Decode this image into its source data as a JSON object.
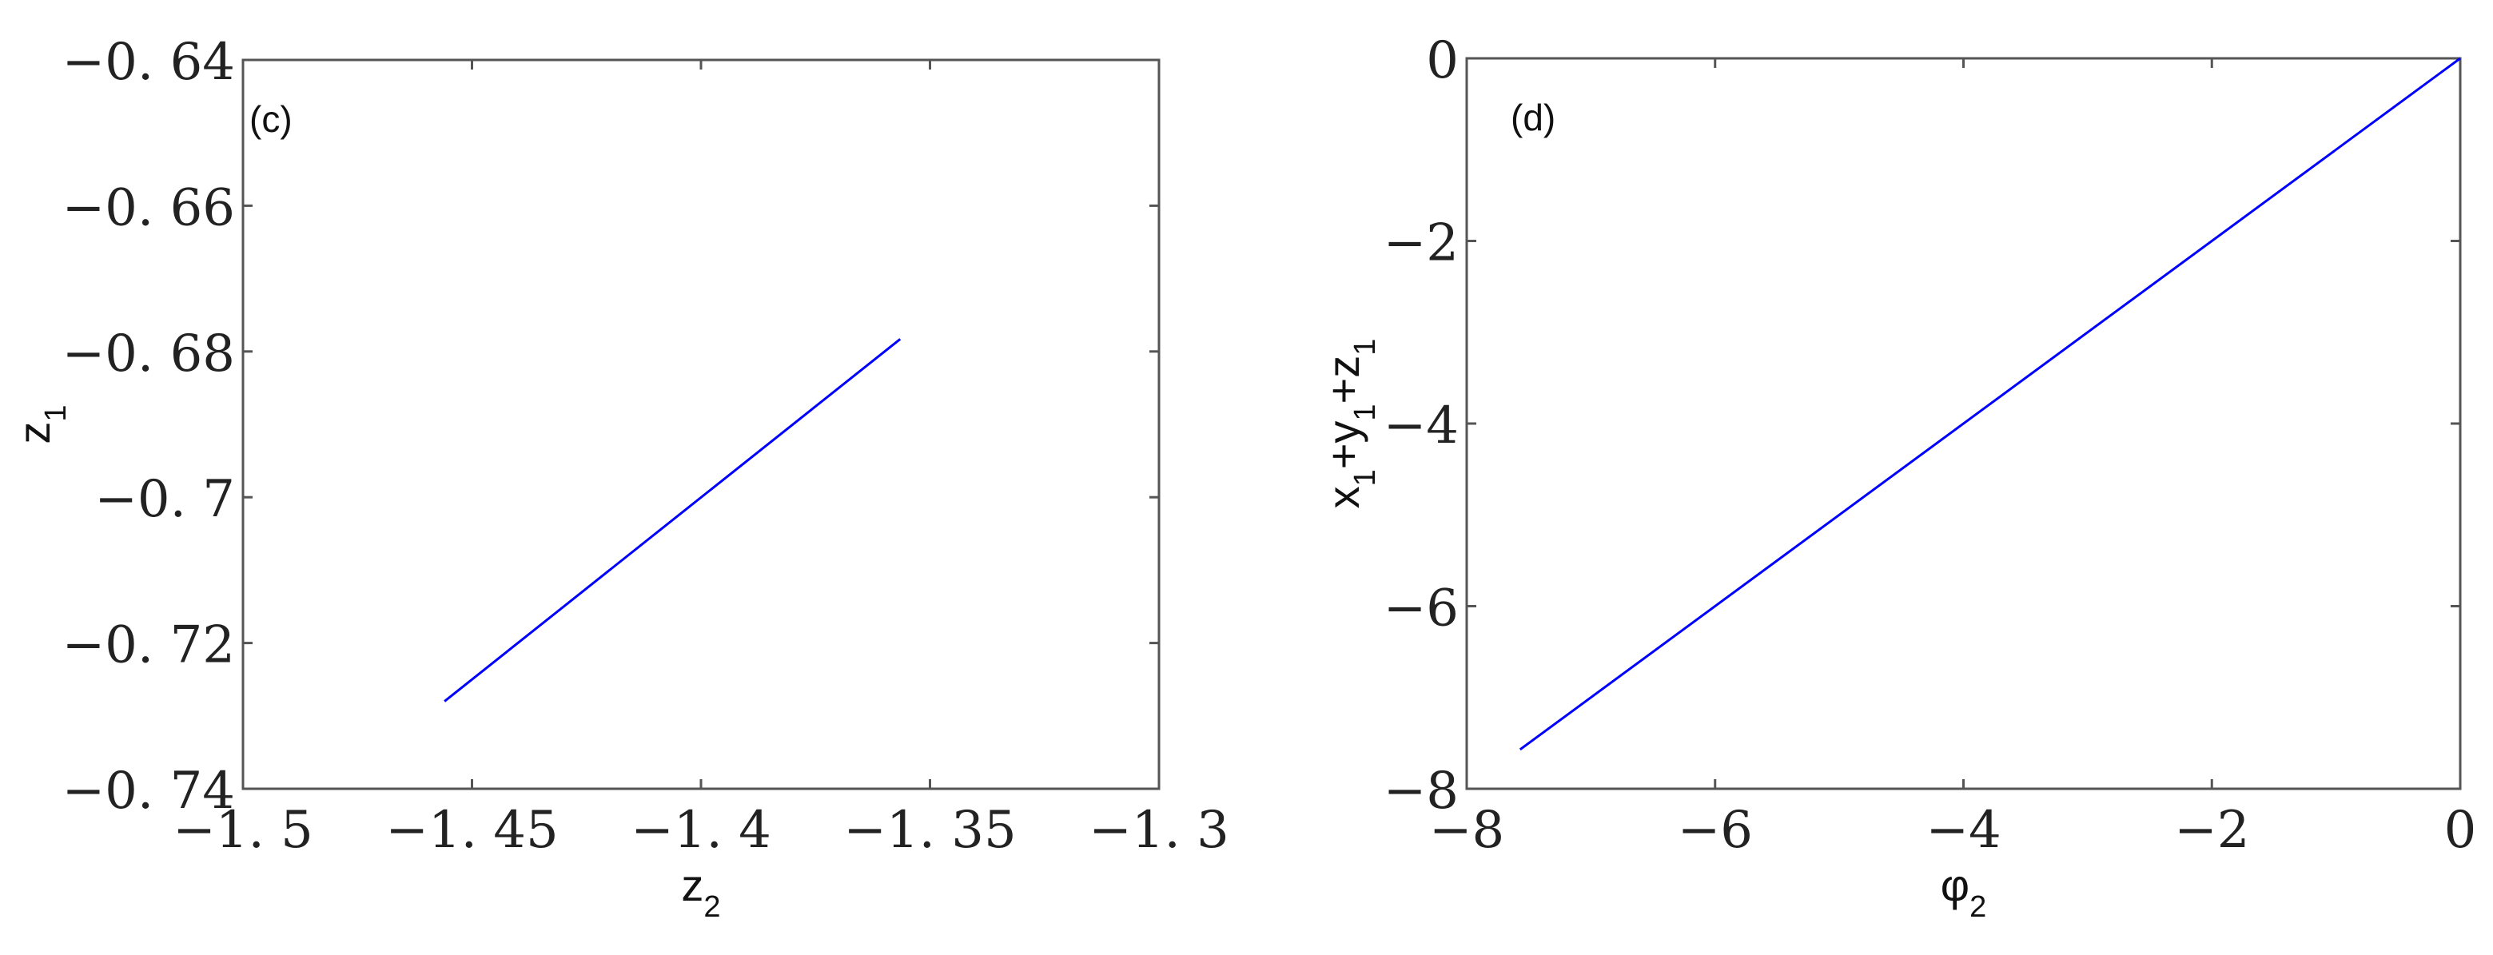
{
  "chart_data": [
    {
      "type": "line",
      "panel_label": "(c)",
      "xlabel": "z",
      "xlabel_sub": "2",
      "ylabel": "z",
      "ylabel_sub": "1",
      "xlim": [
        -1.5,
        -1.3
      ],
      "ylim": [
        -0.74,
        -0.64
      ],
      "xticks": [
        -1.5,
        -1.45,
        -1.4,
        -1.35,
        -1.3
      ],
      "xtick_labels": [
        "−1. 5",
        "−1. 45",
        "−1. 4",
        "−1. 35",
        "−1. 3"
      ],
      "yticks": [
        -0.74,
        -0.72,
        -0.7,
        -0.68,
        -0.66,
        -0.64
      ],
      "ytick_labels": [
        "−0. 74",
        "−0. 72",
        "−0. 7",
        "−0. 68",
        "−0. 66",
        "−0. 64"
      ],
      "grid": false,
      "series": [
        {
          "color": "#0000ff",
          "x": [
            -1.456,
            -1.3565
          ],
          "y": [
            -0.728,
            -0.6783
          ]
        }
      ]
    },
    {
      "type": "line",
      "panel_label": "(d)",
      "xlabel": "φ",
      "xlabel_sub": "2",
      "ylabel_parts": [
        [
          "x",
          "1"
        ],
        [
          "+y",
          "1"
        ],
        [
          "+z",
          "1"
        ]
      ],
      "xlim": [
        -8,
        0
      ],
      "ylim": [
        -8,
        0
      ],
      "xticks": [
        -8,
        -6,
        -4,
        -2,
        0
      ],
      "xtick_labels": [
        "−8",
        "−6",
        "−4",
        "−2",
        "0"
      ],
      "yticks": [
        -8,
        -6,
        -4,
        -2,
        0
      ],
      "ytick_labels": [
        "−8",
        "−6",
        "−4",
        "−2",
        "0"
      ],
      "grid": false,
      "series": [
        {
          "color": "#0000ff",
          "x": [
            -7.57,
            0
          ],
          "y": [
            -7.57,
            0
          ]
        }
      ]
    }
  ]
}
